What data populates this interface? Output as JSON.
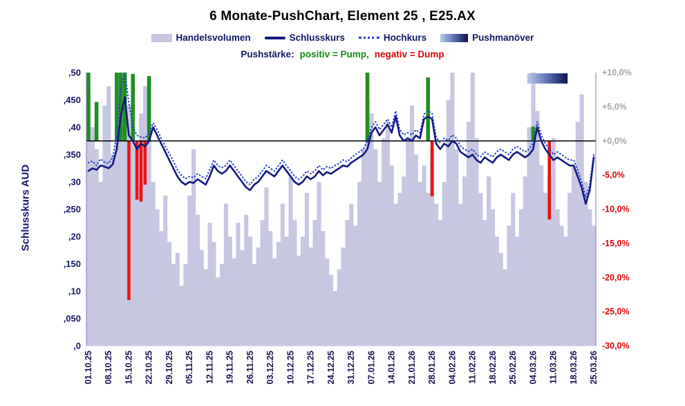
{
  "title": "6 Monate-PushChart, Element 25 , E25.AX",
  "y_axis_title": "Schlusskurs AUD",
  "legend": {
    "volume": "Handelsvolumen",
    "close": "Schlusskurs",
    "high": "Hochkurs",
    "push": "Pushmanöver"
  },
  "push_strength_note": {
    "label": "Pushstärke:",
    "pump": "positiv = Pump,",
    "dump": "negativ = Dump"
  },
  "colors": {
    "volume": "#c7c7e2",
    "close": "#13197f",
    "high": "#2640cf",
    "pump": "#1e8f1e",
    "dump": "#ee1111",
    "zero_line": "#000000",
    "spine": "#8678b8",
    "baseline": "#c9c9dc",
    "axis_left": "#15166d",
    "axis_x": "#13134f",
    "axis_pos": "#a6a6a6",
    "axis_neg": "#e00000",
    "legend_text": "#0e1766",
    "pump_text": "#108a10",
    "dump_text": "#dd0000",
    "push_light": "#bdc9ea",
    "push_mid": "#6d84c4",
    "push_dark": "#0a1150"
  },
  "chart_data": {
    "type": "composite",
    "title": "6 Monate-PushChart, Element 25 , E25.AX",
    "x_unit": "trading day",
    "zero_line_price": 0.375,
    "price_axis": {
      "min": 0,
      "max": 0.5,
      "ticks": [
        0.5,
        0.45,
        0.4,
        0.35,
        0.3,
        0.25,
        0.2,
        0.15,
        0.1,
        0.05,
        0
      ],
      "labels": [
        ",50",
        ",450",
        ",40",
        ",350",
        ",30",
        ",250",
        ",20",
        ",150",
        ",10",
        ",050",
        ",0"
      ]
    },
    "percent_axis": {
      "min": -30,
      "max": 10,
      "ticks": [
        10,
        5,
        0,
        -5,
        -10,
        -15,
        -20,
        -25,
        -30
      ],
      "labels": [
        "+10,0%",
        "+5,0%",
        "+0,0%",
        "-5,0%",
        "-10,0%",
        "-15,0%",
        "-20,0%",
        "-25,0%",
        "-30,0%"
      ]
    },
    "x_ticks": {
      "positions": [
        0,
        5,
        10,
        15,
        20,
        25,
        30,
        35,
        40,
        45,
        50,
        55,
        60,
        65,
        70,
        75,
        80,
        85,
        90,
        95,
        100,
        105,
        110,
        115,
        120,
        125
      ],
      "labels": [
        "01.10.25",
        "08.10.25",
        "15.10.25",
        "22.10.25",
        "29.10.25",
        "05.11.25",
        "12.11.25",
        "19.11.25",
        "26.11.25",
        "03.12.25",
        "10.12.25",
        "17.12.25",
        "24.12.25",
        "31.12.25",
        "07.01.26",
        "14.01.26",
        "21.01.26",
        "28.01.26",
        "04.02.26",
        "11.02.26",
        "18.02.26",
        "25.02.26",
        "04.03.26",
        "11.03.26",
        "18.03.26",
        "25.03.26"
      ]
    },
    "series": {
      "close": [
        0.32,
        0.325,
        0.322,
        0.33,
        0.328,
        0.325,
        0.332,
        0.36,
        0.42,
        0.455,
        0.385,
        0.375,
        0.36,
        0.37,
        0.365,
        0.375,
        0.4,
        0.385,
        0.37,
        0.355,
        0.34,
        0.325,
        0.31,
        0.3,
        0.295,
        0.3,
        0.298,
        0.305,
        0.3,
        0.295,
        0.31,
        0.33,
        0.32,
        0.315,
        0.32,
        0.33,
        0.32,
        0.31,
        0.3,
        0.29,
        0.285,
        0.295,
        0.3,
        0.31,
        0.32,
        0.315,
        0.31,
        0.32,
        0.33,
        0.32,
        0.31,
        0.3,
        0.295,
        0.3,
        0.31,
        0.305,
        0.31,
        0.32,
        0.312,
        0.318,
        0.315,
        0.32,
        0.325,
        0.33,
        0.328,
        0.335,
        0.34,
        0.345,
        0.35,
        0.36,
        0.39,
        0.4,
        0.385,
        0.395,
        0.405,
        0.39,
        0.42,
        0.385,
        0.375,
        0.38,
        0.375,
        0.385,
        0.38,
        0.415,
        0.42,
        0.415,
        0.37,
        0.36,
        0.37,
        0.365,
        0.375,
        0.37,
        0.355,
        0.35,
        0.345,
        0.35,
        0.34,
        0.335,
        0.345,
        0.34,
        0.335,
        0.345,
        0.35,
        0.345,
        0.34,
        0.35,
        0.355,
        0.35,
        0.345,
        0.35,
        0.36,
        0.4,
        0.375,
        0.36,
        0.35,
        0.34,
        0.345,
        0.34,
        0.335,
        0.33,
        0.33,
        0.31,
        0.29,
        0.26,
        0.285,
        0.345
      ],
      "high": [
        0.335,
        0.338,
        0.33,
        0.342,
        0.336,
        0.334,
        0.345,
        0.385,
        0.47,
        0.5,
        0.445,
        0.4,
        0.385,
        0.382,
        0.38,
        0.39,
        0.408,
        0.395,
        0.38,
        0.365,
        0.352,
        0.338,
        0.322,
        0.312,
        0.306,
        0.31,
        0.308,
        0.315,
        0.31,
        0.306,
        0.322,
        0.34,
        0.33,
        0.326,
        0.33,
        0.34,
        0.33,
        0.32,
        0.31,
        0.3,
        0.295,
        0.305,
        0.31,
        0.32,
        0.33,
        0.325,
        0.32,
        0.33,
        0.34,
        0.33,
        0.32,
        0.31,
        0.305,
        0.31,
        0.32,
        0.315,
        0.32,
        0.33,
        0.322,
        0.328,
        0.325,
        0.33,
        0.334,
        0.34,
        0.337,
        0.344,
        0.35,
        0.355,
        0.36,
        0.375,
        0.4,
        0.41,
        0.396,
        0.405,
        0.415,
        0.4,
        0.43,
        0.396,
        0.386,
        0.39,
        0.386,
        0.395,
        0.39,
        0.424,
        0.43,
        0.425,
        0.382,
        0.372,
        0.38,
        0.376,
        0.386,
        0.38,
        0.366,
        0.36,
        0.356,
        0.36,
        0.35,
        0.346,
        0.355,
        0.35,
        0.346,
        0.355,
        0.36,
        0.355,
        0.35,
        0.36,
        0.365,
        0.36,
        0.355,
        0.36,
        0.372,
        0.41,
        0.386,
        0.37,
        0.36,
        0.35,
        0.355,
        0.35,
        0.345,
        0.34,
        0.34,
        0.322,
        0.3,
        0.272,
        0.295,
        0.352
      ],
      "volume_rel": [
        0.93,
        0.8,
        0.72,
        0.6,
        0.88,
        0.95,
        0.7,
        1.0,
        0.97,
        0.92,
        0.88,
        0.8,
        0.74,
        0.85,
        0.95,
        0.75,
        0.6,
        0.5,
        0.42,
        0.55,
        0.38,
        0.3,
        0.34,
        0.22,
        0.3,
        0.55,
        0.72,
        0.48,
        0.35,
        0.28,
        0.45,
        0.38,
        0.25,
        0.3,
        0.52,
        0.4,
        0.32,
        0.45,
        0.35,
        0.48,
        0.4,
        0.3,
        0.36,
        0.46,
        0.58,
        0.42,
        0.32,
        0.38,
        0.52,
        0.4,
        0.62,
        0.46,
        0.33,
        0.4,
        0.56,
        0.36,
        0.46,
        0.6,
        0.42,
        0.32,
        0.26,
        0.2,
        0.28,
        0.36,
        0.46,
        0.52,
        0.44,
        0.6,
        0.72,
        0.9,
        0.85,
        0.72,
        0.6,
        0.76,
        0.82,
        0.66,
        0.52,
        0.56,
        0.62,
        0.76,
        0.88,
        0.7,
        0.6,
        0.66,
        0.56,
        0.72,
        0.52,
        0.46,
        0.6,
        0.9,
        1.0,
        0.72,
        0.52,
        0.62,
        0.82,
        1.0,
        0.76,
        0.56,
        0.46,
        0.62,
        0.5,
        0.4,
        0.34,
        0.28,
        0.44,
        0.56,
        0.4,
        0.5,
        0.62,
        0.8,
        1.0,
        0.86,
        0.66,
        0.56,
        0.62,
        0.76,
        0.5,
        0.44,
        0.4,
        0.56,
        0.66,
        0.82,
        0.92,
        0.6,
        0.5,
        0.44
      ]
    },
    "pump_events_pct": [
      {
        "i": 0,
        "v": 10.0
      },
      {
        "i": 2,
        "v": 5.7
      },
      {
        "i": 7,
        "v": 10.0
      },
      {
        "i": 8,
        "v": 10.0
      },
      {
        "i": 9,
        "v": 10.0
      },
      {
        "i": 11,
        "v": 9.8
      },
      {
        "i": 15,
        "v": 9.5
      },
      {
        "i": 69,
        "v": 10.0
      },
      {
        "i": 84,
        "v": 9.3
      },
      {
        "i": 110,
        "v": 2.1
      }
    ],
    "dump_events_pct": [
      {
        "i": 10,
        "v": -23.3
      },
      {
        "i": 12,
        "v": -8.6
      },
      {
        "i": 13,
        "v": -8.9
      },
      {
        "i": 14,
        "v": -6.4
      },
      {
        "i": 85,
        "v": -8.1
      },
      {
        "i": 114,
        "v": -11.5
      }
    ],
    "push_maneuver": {
      "start_i": 109,
      "end_i": 118,
      "top_pct": 9.9,
      "bottom_pct": 8.4
    }
  }
}
